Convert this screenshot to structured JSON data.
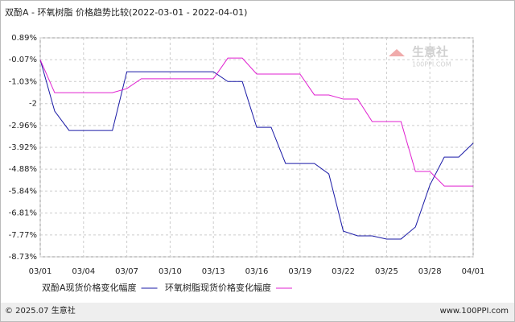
{
  "chart_data": {
    "type": "line",
    "title": "双酚A - 环氧树脂 价格趋势比较(2022-03-01 - 2022-04-01)",
    "categories": [
      "03/01",
      null,
      null,
      "03/04",
      null,
      null,
      "03/07",
      null,
      null,
      "03/10",
      null,
      null,
      "03/13",
      null,
      null,
      "03/16",
      null,
      null,
      "03/19",
      null,
      null,
      "03/22",
      null,
      null,
      "03/25",
      null,
      null,
      "03/28",
      null,
      null,
      "04/01"
    ],
    "series": [
      {
        "name": "双酚A现货价格变化幅度",
        "color": "#1a1aa6",
        "values": [
          -0.07,
          -2.33,
          -3.18,
          -3.18,
          -3.18,
          -3.18,
          -0.6,
          -0.6,
          -0.6,
          -0.6,
          -0.6,
          -0.6,
          -0.6,
          -1.03,
          -1.03,
          -3.04,
          -3.04,
          -4.63,
          -4.63,
          -4.63,
          -5.09,
          -7.6,
          -7.81,
          -7.81,
          -7.95,
          -7.95,
          -7.42,
          -5.58,
          -4.35,
          -4.35,
          -3.74
        ]
      },
      {
        "name": "环氧树脂现货价格变化幅度",
        "color": "#e020d0",
        "values": [
          -0.07,
          -1.52,
          -1.52,
          -1.52,
          -1.52,
          -1.52,
          -1.34,
          -0.91,
          -0.91,
          -0.91,
          -0.91,
          -0.91,
          -0.91,
          0.0,
          0.0,
          -0.7,
          -0.7,
          -0.7,
          -0.7,
          -1.62,
          -1.62,
          -1.8,
          -1.8,
          -2.79,
          -2.79,
          -2.79,
          -4.98,
          -4.98,
          -5.62,
          -5.62,
          -5.62
        ]
      }
    ],
    "ylim": [
      -8.73,
      0.89
    ],
    "yticks": [
      {
        "value": 0.89,
        "label": "0.89%"
      },
      {
        "value": -0.07,
        "label": "-0.07%"
      },
      {
        "value": -1.03,
        "label": "-1.03%"
      },
      -2,
      {
        "value": -2.96,
        "label": "-2.96%"
      },
      {
        "value": -3.92,
        "label": "-3.92%"
      },
      {
        "value": -4.88,
        "label": "-4.88%"
      },
      {
        "value": -5.84,
        "label": "-5.84%"
      },
      {
        "value": -6.81,
        "label": "-6.81%"
      },
      {
        "value": -7.77,
        "label": "-7.77%"
      },
      {
        "value": -8.73,
        "label": "-8.73%"
      }
    ],
    "grid": true
  },
  "logo": {
    "name": "生意社",
    "site": "100PPI.COM"
  },
  "footer": {
    "copyright": "© 2025.07 生意社",
    "url": "www.100PPI.com"
  }
}
